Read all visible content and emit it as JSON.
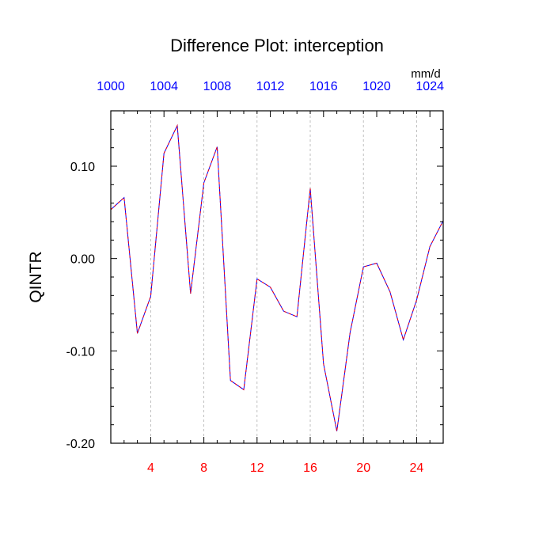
{
  "chart_data": {
    "type": "line",
    "title": "Difference Plot: interception",
    "ylabel": "QINTR",
    "units": "mm/d",
    "xlim": [
      1,
      26
    ],
    "ylim": [
      -0.2,
      0.16
    ],
    "grid": "vertical-dashed",
    "bottom_axis": {
      "ticks": [
        4,
        8,
        12,
        16,
        20,
        24
      ],
      "labels": [
        "4",
        "8",
        "12",
        "16",
        "20",
        "24"
      ],
      "color": "#ff0000"
    },
    "top_axis": {
      "ticks": [
        1,
        5,
        9,
        13,
        17,
        21,
        25
      ],
      "labels": [
        "1000",
        "1004",
        "1008",
        "1012",
        "1016",
        "1020",
        "1024"
      ],
      "color": "#0000ff"
    },
    "y_axis": {
      "ticks": [
        -0.2,
        -0.1,
        0.0,
        0.1
      ],
      "labels": [
        "-0.20",
        "-0.10",
        "0.00",
        "0.10"
      ]
    },
    "series": [
      {
        "color": "#0000ff",
        "dash_color": "#ff0000",
        "x": [
          1,
          2,
          3,
          4,
          5,
          6,
          7,
          8,
          9,
          10,
          11,
          12,
          13,
          14,
          15,
          16,
          17,
          18,
          19,
          20,
          21,
          22,
          23,
          24,
          25,
          26
        ],
        "values": [
          0.053,
          0.066,
          -0.081,
          -0.041,
          0.114,
          0.144,
          -0.038,
          0.082,
          0.121,
          -0.132,
          -0.142,
          -0.022,
          -0.031,
          -0.057,
          -0.063,
          0.076,
          -0.114,
          -0.187,
          -0.08,
          -0.009,
          -0.005,
          -0.036,
          -0.088,
          -0.045,
          0.013,
          0.041
        ]
      }
    ]
  }
}
